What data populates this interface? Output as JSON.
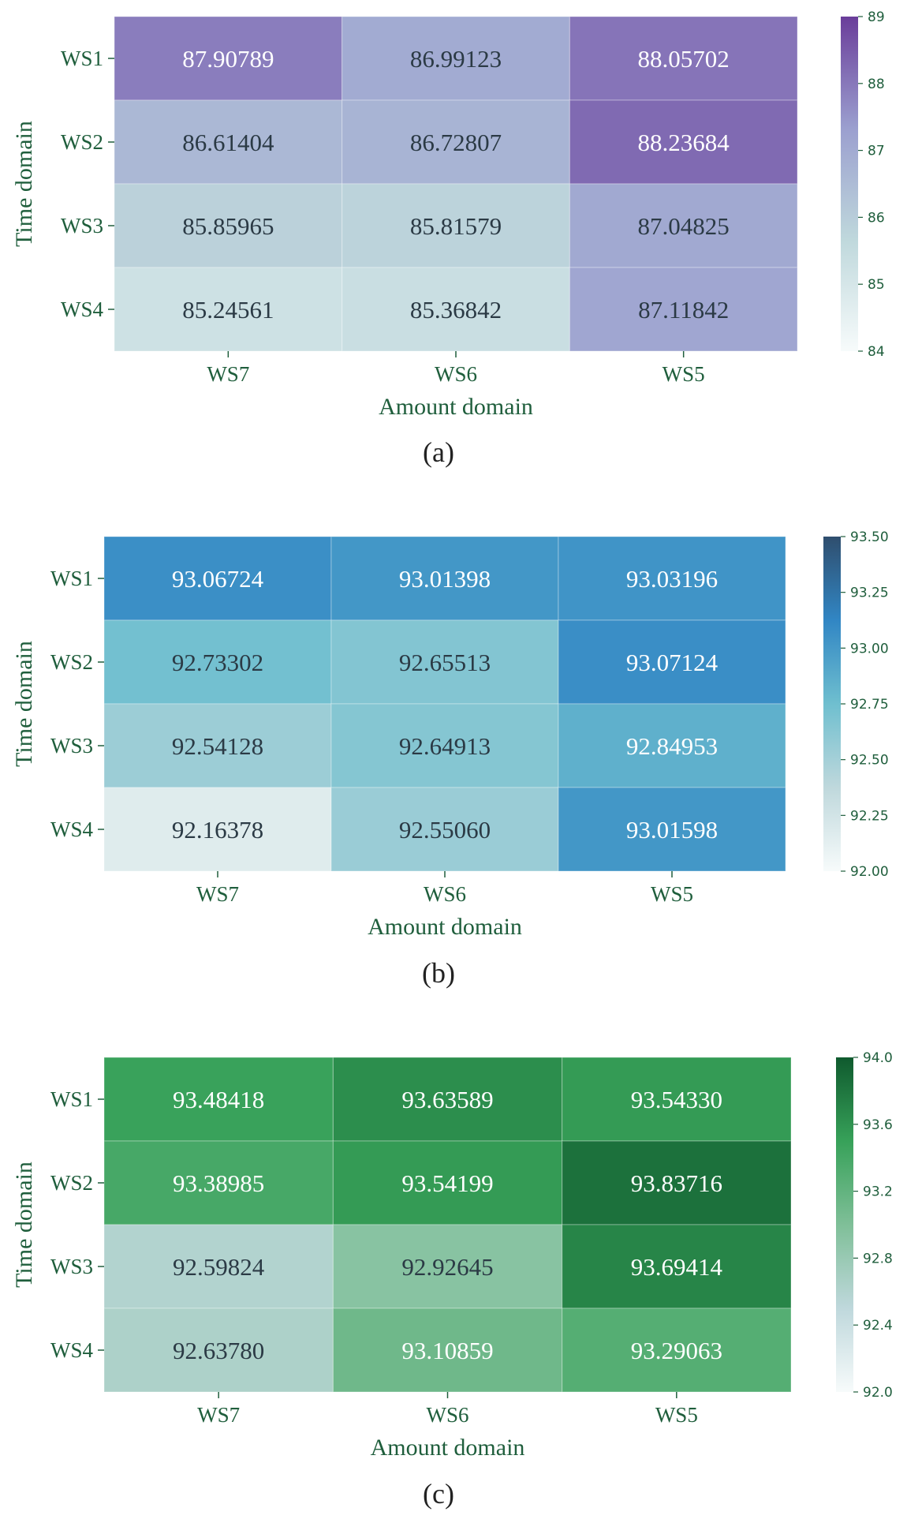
{
  "chart_data": [
    {
      "type": "heatmap",
      "caption": "(a)",
      "xlabel": "Amount domain",
      "ylabel": "Time domain",
      "x_categories": [
        "WS7",
        "WS6",
        "WS5"
      ],
      "y_categories": [
        "WS1",
        "WS2",
        "WS3",
        "WS4"
      ],
      "values": [
        [
          87.90789,
          86.99123,
          88.05702
        ],
        [
          86.61404,
          86.72807,
          88.23684
        ],
        [
          85.85965,
          85.81579,
          87.04825
        ],
        [
          85.24561,
          85.36842,
          87.11842
        ]
      ],
      "value_labels": [
        [
          "87.90789",
          "86.99123",
          "88.05702"
        ],
        [
          "86.61404",
          "86.72807",
          "88.23684"
        ],
        [
          "85.85965",
          "85.81579",
          "87.04825"
        ],
        [
          "85.24561",
          "85.36842",
          "87.11842"
        ]
      ],
      "colorbar": {
        "min": 84,
        "max": 89,
        "ticks": [
          84,
          85,
          86,
          87,
          88,
          89
        ],
        "tick_labels": [
          "84",
          "85",
          "86",
          "87",
          "88",
          "89"
        ],
        "colors": [
          "#f7fbfb",
          "#bfd8dc",
          "#9b9fcf",
          "#6a3d9a"
        ]
      }
    },
    {
      "type": "heatmap",
      "caption": "(b)",
      "xlabel": "Amount domain",
      "ylabel": "Time domain",
      "x_categories": [
        "WS7",
        "WS6",
        "WS5"
      ],
      "y_categories": [
        "WS1",
        "WS2",
        "WS3",
        "WS4"
      ],
      "values": [
        [
          93.06724,
          93.01398,
          93.03196
        ],
        [
          92.73302,
          92.65513,
          93.07124
        ],
        [
          92.54128,
          92.64913,
          92.84953
        ],
        [
          92.16378,
          92.5506,
          93.01598
        ]
      ],
      "value_labels": [
        [
          "93.06724",
          "93.01398",
          "93.03196"
        ],
        [
          "92.73302",
          "92.65513",
          "93.07124"
        ],
        [
          "92.54128",
          "92.64913",
          "92.84953"
        ],
        [
          "92.16378",
          "92.55060",
          "93.01598"
        ]
      ],
      "colorbar": {
        "min": 92.0,
        "max": 93.5,
        "ticks": [
          92.0,
          92.25,
          92.5,
          92.75,
          93.0,
          93.25,
          93.5
        ],
        "tick_labels": [
          "92.00",
          "92.25",
          "92.50",
          "92.75",
          "93.00",
          "93.25",
          "93.50"
        ],
        "colors": [
          "#f7fbfb",
          "#bfd8dc",
          "#6fbfcf",
          "#3186c4",
          "#2f4e6e"
        ]
      }
    },
    {
      "type": "heatmap",
      "caption": "(c)",
      "xlabel": "Amount domain",
      "ylabel": "Time domain",
      "x_categories": [
        "WS7",
        "WS6",
        "WS5"
      ],
      "y_categories": [
        "WS1",
        "WS2",
        "WS3",
        "WS4"
      ],
      "values": [
        [
          93.48418,
          93.63589,
          93.5433
        ],
        [
          93.38985,
          93.54199,
          93.83716
        ],
        [
          92.59824,
          92.92645,
          93.69414
        ],
        [
          92.6378,
          93.10859,
          93.29063
        ]
      ],
      "value_labels": [
        [
          "93.48418",
          "93.63589",
          "93.54330"
        ],
        [
          "93.38985",
          "93.54199",
          "93.83716"
        ],
        [
          "92.59824",
          "92.92645",
          "93.69414"
        ],
        [
          "92.63780",
          "93.10859",
          "93.29063"
        ]
      ],
      "colorbar": {
        "min": 92.0,
        "max": 94.0,
        "ticks": [
          92.0,
          92.4,
          92.8,
          93.2,
          93.6,
          94.0
        ],
        "tick_labels": [
          "92.0",
          "92.4",
          "92.8",
          "93.2",
          "93.6",
          "94.0"
        ],
        "colors": [
          "#f7fbfb",
          "#bfd8dc",
          "#7fbf98",
          "#37a159",
          "#0f5a2e"
        ]
      }
    }
  ]
}
